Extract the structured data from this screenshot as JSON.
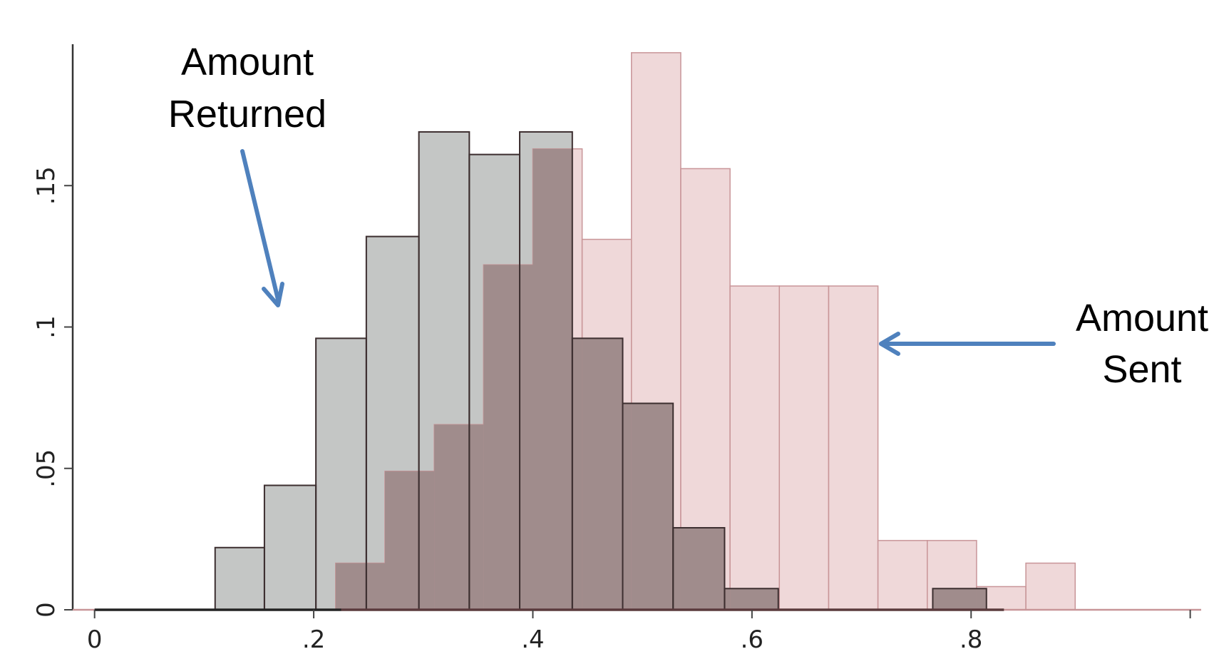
{
  "chart_data": {
    "type": "bar",
    "title": "",
    "xlabel": "",
    "ylabel": "",
    "xlim": [
      -0.005,
      1.01
    ],
    "ylim": [
      0,
      0.2
    ],
    "x_ticks": [
      0,
      0.2,
      0.4,
      0.6,
      0.8
    ],
    "x_tick_labels": [
      "0",
      ".2",
      ".4",
      ".6",
      ".8"
    ],
    "y_ticks": [
      0,
      0.05,
      0.1,
      0.15
    ],
    "y_tick_labels": [
      "0",
      ".05",
      ".1",
      ".15"
    ],
    "grid": false,
    "series": [
      {
        "color": "#c4c6c5",
        "edge_color": "#555555",
        "bins": [
          {
            "x0": 0.11,
            "x1": 0.155,
            "y": 0.022
          },
          {
            "x0": 0.155,
            "x1": 0.202,
            "y": 0.044
          },
          {
            "x0": 0.202,
            "x1": 0.248,
            "y": 0.096
          },
          {
            "x0": 0.248,
            "x1": 0.296,
            "y": 0.132
          },
          {
            "x0": 0.296,
            "x1": 0.342,
            "y": 0.169
          },
          {
            "x0": 0.342,
            "x1": 0.388,
            "y": 0.161
          },
          {
            "x0": 0.388,
            "x1": 0.436,
            "y": 0.169
          },
          {
            "x0": 0.436,
            "x1": 0.482,
            "y": 0.096
          },
          {
            "x0": 0.482,
            "x1": 0.528,
            "y": 0.073
          },
          {
            "x0": 0.528,
            "x1": 0.575,
            "y": 0.029
          },
          {
            "x0": 0.575,
            "x1": 0.624,
            "y": 0.0075
          },
          {
            "x0": 0.765,
            "x1": 0.814,
            "y": 0.0075
          }
        ]
      },
      {
        "color": "#ebcfd1",
        "edge_color": "#c89598",
        "bins": [
          {
            "x0": 0.22,
            "x1": 0.265,
            "y": 0.0165
          },
          {
            "x0": 0.265,
            "x1": 0.31,
            "y": 0.049
          },
          {
            "x0": 0.31,
            "x1": 0.355,
            "y": 0.0655
          },
          {
            "x0": 0.355,
            "x1": 0.4,
            "y": 0.122
          },
          {
            "x0": 0.4,
            "x1": 0.445,
            "y": 0.163
          },
          {
            "x0": 0.445,
            "x1": 0.49,
            "y": 0.131
          },
          {
            "x0": 0.49,
            "x1": 0.535,
            "y": 0.197
          },
          {
            "x0": 0.535,
            "x1": 0.58,
            "y": 0.156
          },
          {
            "x0": 0.58,
            "x1": 0.625,
            "y": 0.1145
          },
          {
            "x0": 0.625,
            "x1": 0.67,
            "y": 0.1145
          },
          {
            "x0": 0.67,
            "x1": 0.715,
            "y": 0.1145
          },
          {
            "x0": 0.715,
            "x1": 0.76,
            "y": 0.0245
          },
          {
            "x0": 0.76,
            "x1": 0.805,
            "y": 0.0245
          },
          {
            "x0": 0.805,
            "x1": 0.85,
            "y": 0.0082
          },
          {
            "x0": 0.85,
            "x1": 0.895,
            "y": 0.0165
          }
        ]
      }
    ],
    "overlap_color": "#a08c8c",
    "annotations": [
      {
        "lines": [
          "Amount",
          "Returned"
        ],
        "arrow_direction": "down"
      },
      {
        "lines": [
          "Amount",
          "Sent"
        ],
        "arrow_direction": "left"
      }
    ],
    "arrow_color": "#4f81bd"
  }
}
